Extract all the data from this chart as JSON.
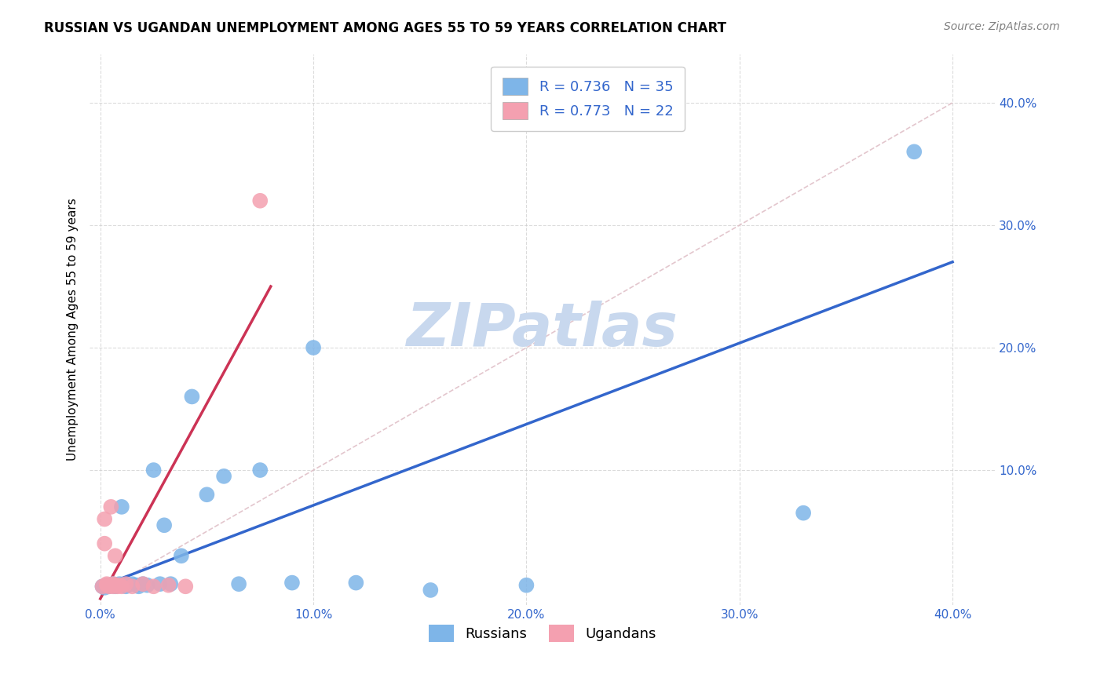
{
  "title": "RUSSIAN VS UGANDAN UNEMPLOYMENT AMONG AGES 55 TO 59 YEARS CORRELATION CHART",
  "source": "Source: ZipAtlas.com",
  "ylabel": "Unemployment Among Ages 55 to 59 years",
  "xlim": [
    -0.005,
    0.42
  ],
  "ylim": [
    -0.01,
    0.44
  ],
  "xticks": [
    0.0,
    0.1,
    0.2,
    0.3,
    0.4
  ],
  "yticks": [
    0.1,
    0.2,
    0.3,
    0.4
  ],
  "xtick_labels": [
    "0.0%",
    "10.0%",
    "20.0%",
    "30.0%",
    "40.0%"
  ],
  "ytick_labels": [
    "10.0%",
    "20.0%",
    "30.0%",
    "40.0%"
  ],
  "russian_R": 0.736,
  "russian_N": 35,
  "ugandan_R": 0.773,
  "ugandan_N": 22,
  "russian_color": "#7EB5E8",
  "ugandan_color": "#F4A0B0",
  "russian_line_color": "#3366CC",
  "ugandan_line_color": "#CC3355",
  "diag_color": "#E0C0C8",
  "watermark_color": "#C8D8EE",
  "background_color": "#FFFFFF",
  "grid_color": "#CCCCCC",
  "russian_x": [
    0.001,
    0.002,
    0.003,
    0.004,
    0.005,
    0.006,
    0.007,
    0.008,
    0.009,
    0.01,
    0.011,
    0.012,
    0.013,
    0.015,
    0.017,
    0.018,
    0.02,
    0.022,
    0.025,
    0.028,
    0.03,
    0.033,
    0.038,
    0.043,
    0.05,
    0.058,
    0.065,
    0.075,
    0.09,
    0.1,
    0.12,
    0.155,
    0.2,
    0.33,
    0.382
  ],
  "russian_y": [
    0.005,
    0.004,
    0.006,
    0.005,
    0.006,
    0.007,
    0.005,
    0.006,
    0.007,
    0.07,
    0.006,
    0.005,
    0.006,
    0.007,
    0.006,
    0.005,
    0.007,
    0.006,
    0.1,
    0.007,
    0.055,
    0.007,
    0.03,
    0.16,
    0.08,
    0.095,
    0.007,
    0.1,
    0.008,
    0.2,
    0.008,
    0.002,
    0.006,
    0.065,
    0.36
  ],
  "ugandan_x": [
    0.001,
    0.002,
    0.002,
    0.003,
    0.003,
    0.004,
    0.005,
    0.005,
    0.006,
    0.006,
    0.007,
    0.007,
    0.008,
    0.009,
    0.01,
    0.012,
    0.015,
    0.02,
    0.025,
    0.032,
    0.04,
    0.075
  ],
  "ugandan_y": [
    0.005,
    0.04,
    0.06,
    0.006,
    0.007,
    0.005,
    0.006,
    0.07,
    0.005,
    0.007,
    0.006,
    0.03,
    0.005,
    0.006,
    0.005,
    0.007,
    0.005,
    0.007,
    0.005,
    0.006,
    0.005,
    0.32
  ],
  "russian_line_x": [
    0.0,
    0.4
  ],
  "russian_line_y": [
    0.005,
    0.27
  ],
  "ugandan_line_x": [
    0.0,
    0.08
  ],
  "ugandan_line_y": [
    -0.005,
    0.25
  ],
  "diag_line_x": [
    0.0,
    0.4
  ],
  "diag_line_y": [
    0.0,
    0.4
  ],
  "title_fontsize": 12,
  "axis_label_fontsize": 11,
  "tick_fontsize": 11,
  "legend_fontsize": 13,
  "source_fontsize": 10
}
